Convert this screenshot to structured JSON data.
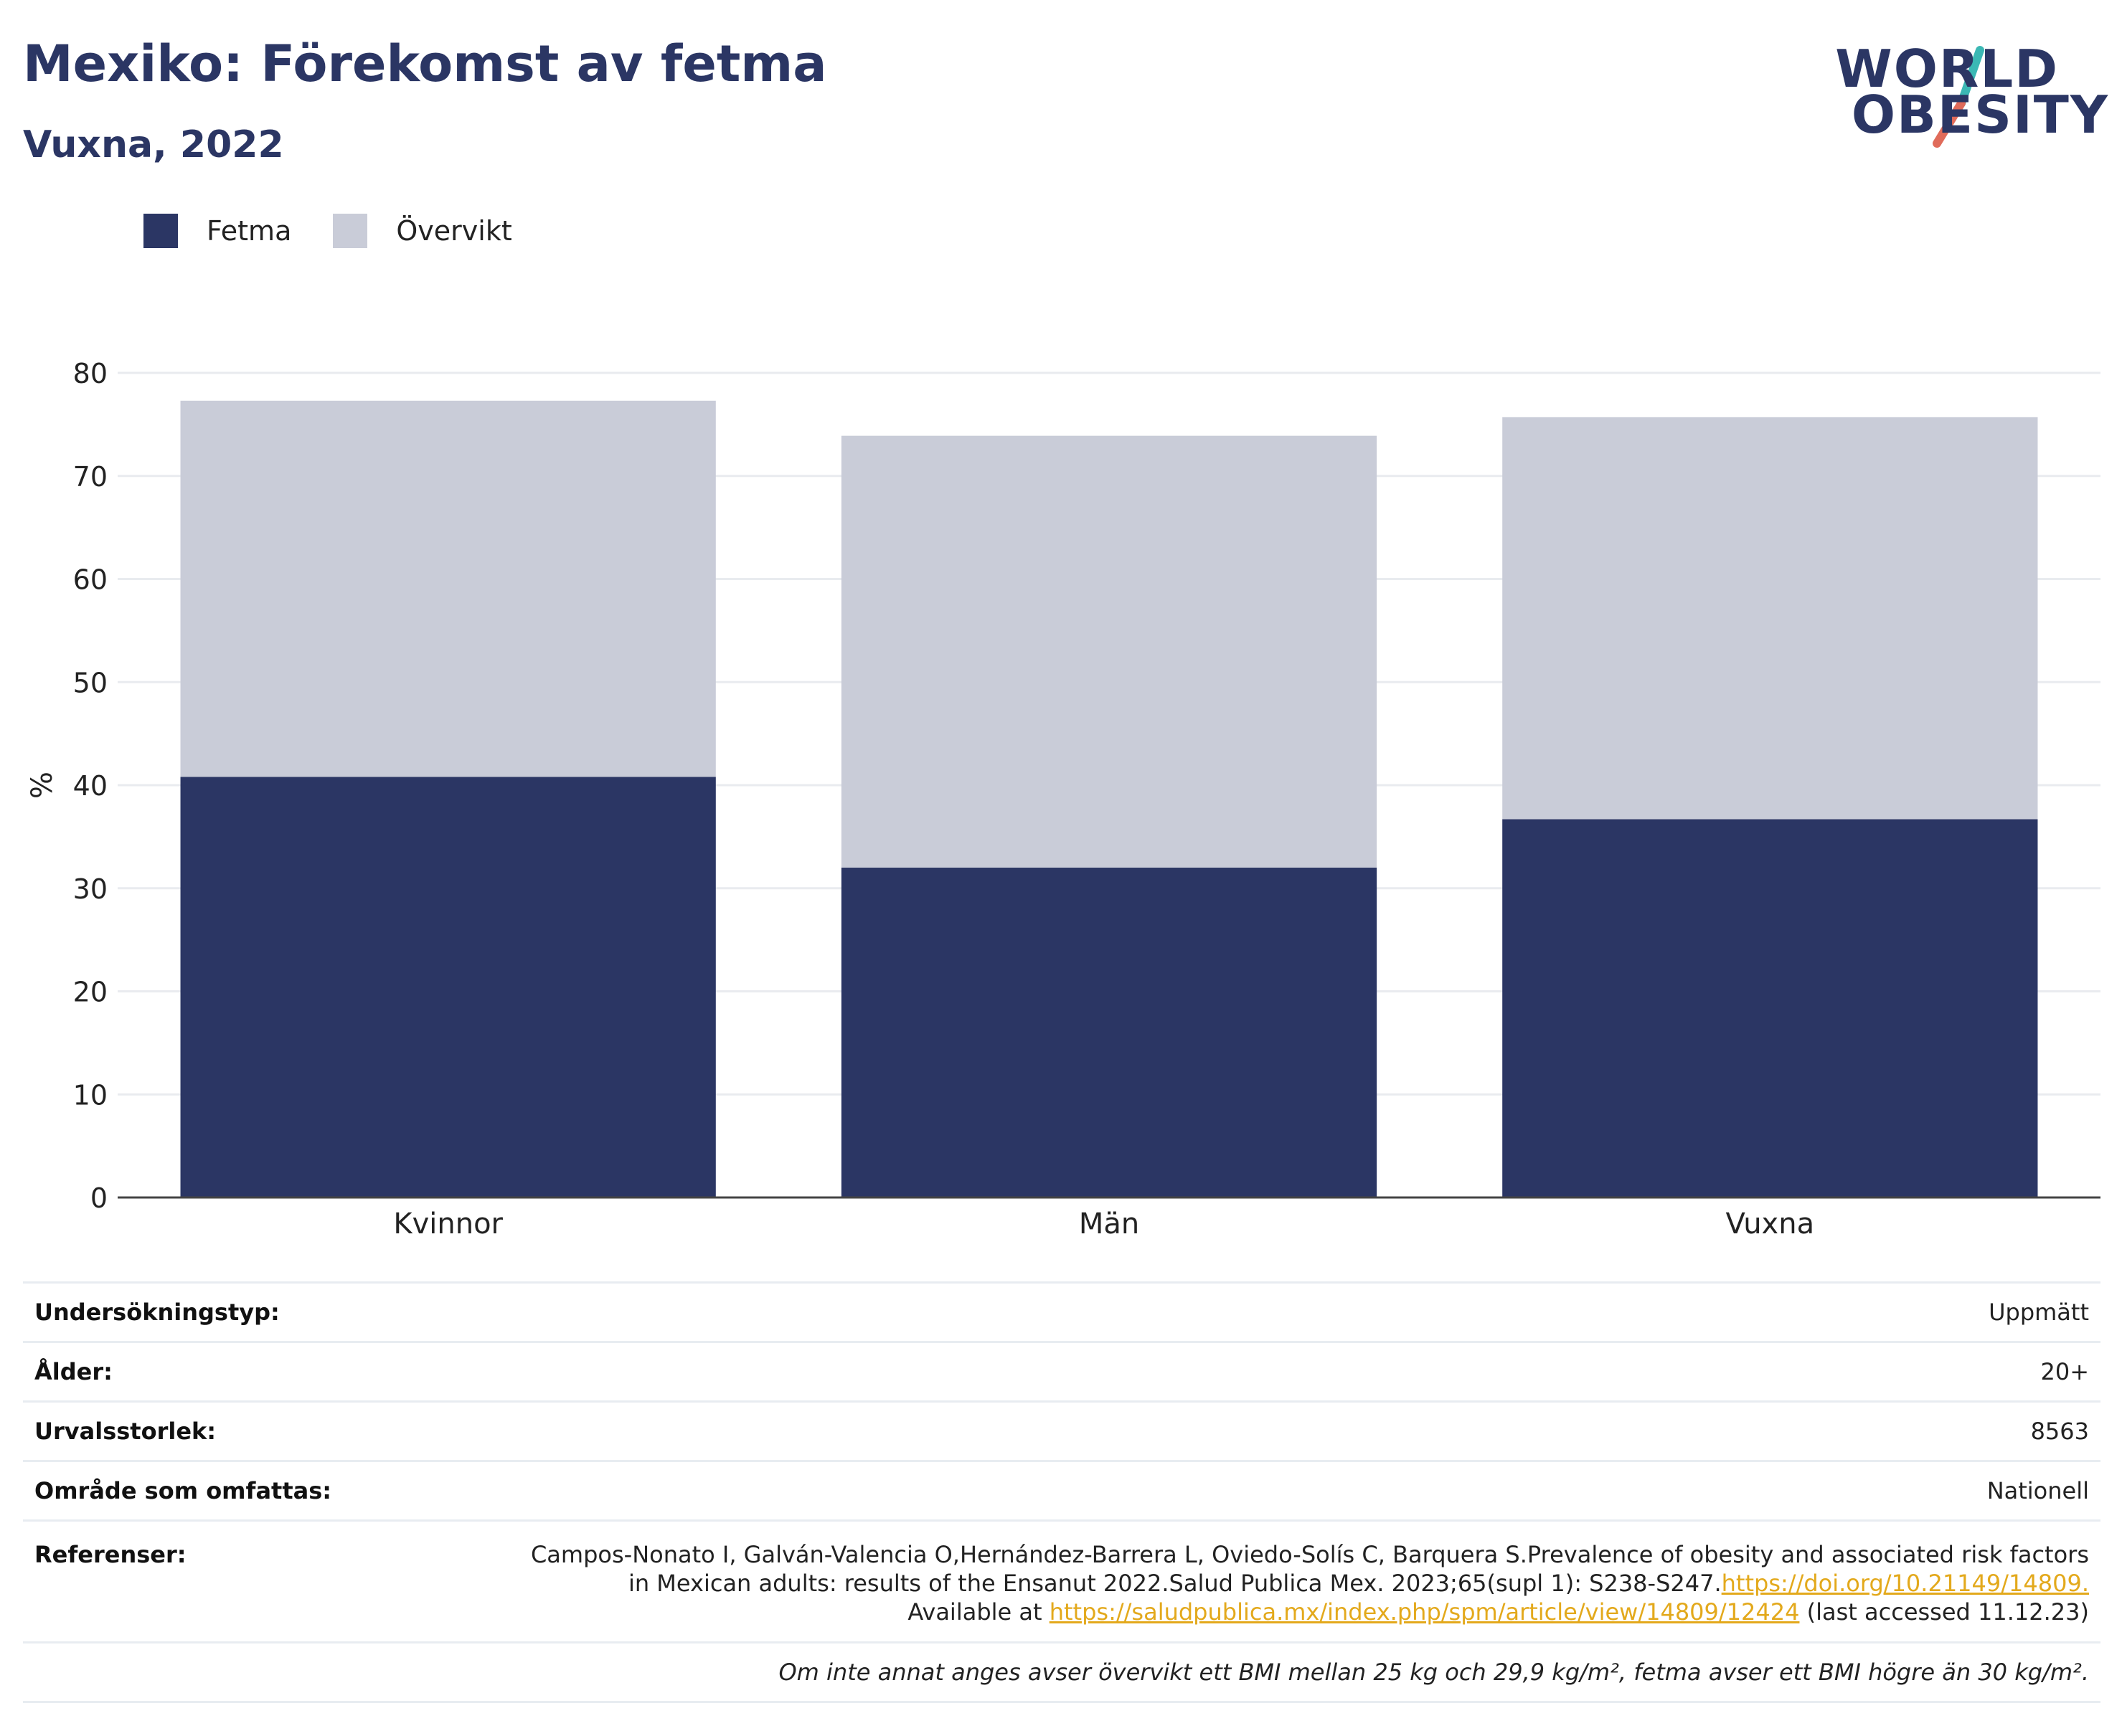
{
  "header": {
    "title": "Mexiko: Förekomst av fetma",
    "subtitle": "Vuxna, 2022"
  },
  "logo": {
    "line1": "WORLD",
    "line2": "OBESITY",
    "slash_colors": [
      "#3bb8b4",
      "#e06b5a"
    ]
  },
  "legend": [
    {
      "label": "Fetma",
      "color": "#2b3664"
    },
    {
      "label": "Övervikt",
      "color": "#c9ccd8"
    }
  ],
  "chart_data": {
    "type": "bar",
    "stacked": true,
    "categories": [
      "Kvinnor",
      "Män",
      "Vuxna"
    ],
    "series": [
      {
        "name": "Fetma",
        "color": "#2b3664",
        "values": [
          40.8,
          32.0,
          36.7
        ]
      },
      {
        "name": "Övervikt",
        "color": "#c9ccd8",
        "values": [
          36.5,
          41.9,
          39.0
        ]
      }
    ],
    "ylabel": "%",
    "ylim": [
      0,
      80
    ],
    "yticks": [
      0,
      10,
      20,
      30,
      40,
      50,
      60,
      70,
      80
    ],
    "grid": true,
    "legend_position": "top-left"
  },
  "details": {
    "rows": [
      {
        "key": "Undersökningstyp:",
        "value": "Uppmätt"
      },
      {
        "key": "Ålder:",
        "value": "20+"
      },
      {
        "key": "Urvalsstorlek:",
        "value": "8563"
      },
      {
        "key": "Område som omfattas:",
        "value": "Nationell"
      }
    ],
    "references": {
      "key": "Referenser:",
      "line1": "Campos-Nonato I, Galván-Valencia O,Hernández-Barrera L, Oviedo-Solís C, Barquera S.Prevalence of obesity and associated risk factors",
      "line2_text": "in Mexican adults: results of the Ensanut 2022.Salud Publica Mex. 2023;65(supl 1): S238-S247.",
      "line2_link": "https://doi.org/10.21149/14809.",
      "line3_prefix": "Available at ",
      "line3_link": "https://saludpublica.mx/index.php/spm/article/view/14809/12424",
      "line3_suffix": " (last accessed 11.12.23)"
    },
    "note": "Om inte annat anges avser övervikt ett BMI mellan 25 kg och 29,9 kg/m², fetma avser ett BMI högre än 30 kg/m²."
  }
}
